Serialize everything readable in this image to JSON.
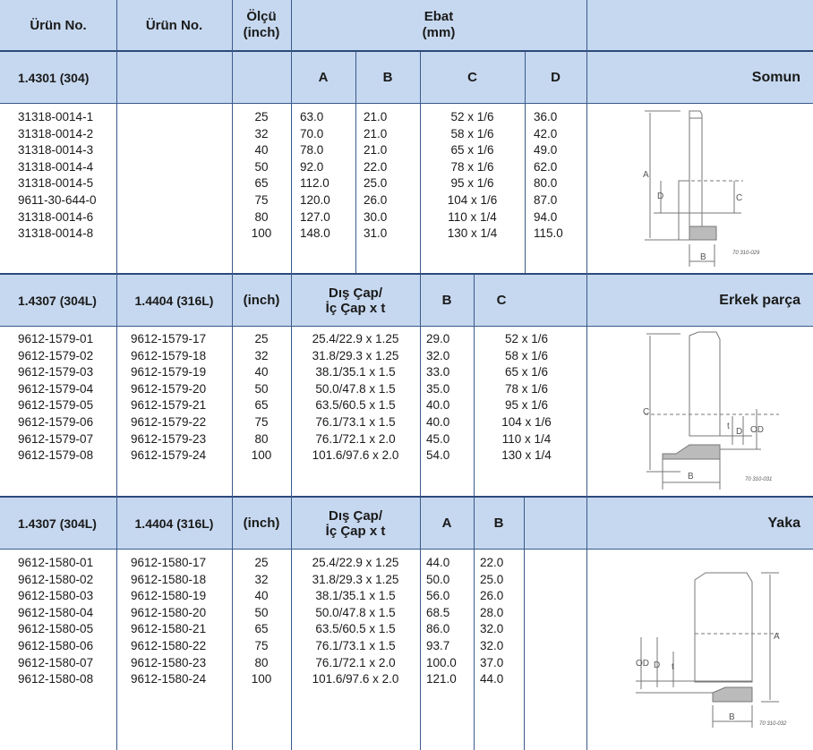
{
  "header": {
    "col1": "Ürün No.",
    "col2": "Ürün No.",
    "col3": "Ölçü\n(inch)",
    "ebat": "Ebat\n(mm)"
  },
  "sections": [
    {
      "material1": "1.4301 (304)",
      "material2": "",
      "col3": "",
      "heads": [
        "A",
        "B",
        "C",
        "D"
      ],
      "name": "Somun",
      "drawing_code": "70 310-029",
      "rows": [
        [
          "31318-0014-1",
          "",
          "25",
          "63.0",
          "21.0",
          "52 x 1/6",
          "36.0"
        ],
        [
          "31318-0014-2",
          "",
          "32",
          "70.0",
          "21.0",
          "58 x 1/6",
          "42.0"
        ],
        [
          "31318-0014-3",
          "",
          "40",
          "78.0",
          "21.0",
          "65 x 1/6",
          "49.0"
        ],
        [
          "31318-0014-4",
          "",
          "50",
          "92.0",
          "22.0",
          "78 x 1/6",
          "62.0"
        ],
        [
          "31318-0014-5",
          "",
          "65",
          "112.0",
          "25.0",
          "95 x 1/6",
          "80.0"
        ],
        [
          "9611-30-644-0",
          "",
          "75",
          "120.0",
          "26.0",
          "104 x 1/6",
          "87.0"
        ],
        [
          "31318-0014-6",
          "",
          "80",
          "127.0",
          "30.0",
          "110 x 1/4",
          "94.0"
        ],
        [
          "31318-0014-8",
          "",
          "100",
          "148.0",
          "31.0",
          "130 x 1/4",
          "115.0"
        ]
      ]
    },
    {
      "material1": "1.4307 (304L)",
      "material2": "1.4404 (316L)",
      "col3": "(inch)",
      "heads": [
        "Dış Çap/\nİç Çap x t",
        "B",
        "C"
      ],
      "name": "Erkek parça",
      "drawing_code": "70 310-031",
      "rows": [
        [
          "9612-1579-01",
          "9612-1579-17",
          "25",
          "25.4/22.9 x 1.25",
          "29.0",
          "52 x 1/6"
        ],
        [
          "9612-1579-02",
          "9612-1579-18",
          "32",
          "31.8/29.3 x 1.25",
          "32.0",
          "58 x 1/6"
        ],
        [
          "9612-1579-03",
          "9612-1579-19",
          "40",
          "38.1/35.1 x 1.5",
          "33.0",
          "65 x 1/6"
        ],
        [
          "9612-1579-04",
          "9612-1579-20",
          "50",
          "50.0/47.8 x 1.5",
          "35.0",
          "78 x 1/6"
        ],
        [
          "9612-1579-05",
          "9612-1579-21",
          "65",
          "63.5/60.5 x 1.5",
          "40.0",
          "95 x 1/6"
        ],
        [
          "9612-1579-06",
          "9612-1579-22",
          "75",
          "76.1/73.1 x 1.5",
          "40.0",
          "104 x 1/6"
        ],
        [
          "9612-1579-07",
          "9612-1579-23",
          "80",
          "76.1/72.1 x 2.0",
          "45.0",
          "110 x 1/4"
        ],
        [
          "9612-1579-08",
          "9612-1579-24",
          "100",
          "101.6/97.6 x 2.0",
          "54.0",
          "130 x 1/4"
        ]
      ]
    },
    {
      "material1": "1.4307 (304L)",
      "material2": "1.4404 (316L)",
      "col3": "(inch)",
      "heads": [
        "Dış Çap/\nİç Çap x t",
        "A",
        "B"
      ],
      "name": "Yaka",
      "drawing_code": "70 310-032",
      "rows": [
        [
          "9612-1580-01",
          "9612-1580-17",
          "25",
          "25.4/22.9 x 1.25",
          "44.0",
          "22.0"
        ],
        [
          "9612-1580-02",
          "9612-1580-18",
          "32",
          "31.8/29.3 x 1.25",
          "50.0",
          "25.0"
        ],
        [
          "9612-1580-03",
          "9612-1580-19",
          "40",
          "38.1/35.1 x 1.5",
          "56.0",
          "26.0"
        ],
        [
          "9612-1580-04",
          "9612-1580-20",
          "50",
          "50.0/47.8 x 1.5",
          "68.5",
          "28.0"
        ],
        [
          "9612-1580-05",
          "9612-1580-21",
          "65",
          "63.5/60.5 x 1.5",
          "86.0",
          "32.0"
        ],
        [
          "9612-1580-06",
          "9612-1580-22",
          "75",
          "76.1/73.1 x 1.5",
          "93.7",
          "32.0"
        ],
        [
          "9612-1580-07",
          "9612-1580-23",
          "80",
          "76.1/72.1 x 2.0",
          "100.0",
          "37.0"
        ],
        [
          "9612-1580-08",
          "9612-1580-24",
          "100",
          "101.6/97.6 x 2.0",
          "121.0",
          "44.0"
        ]
      ]
    }
  ]
}
